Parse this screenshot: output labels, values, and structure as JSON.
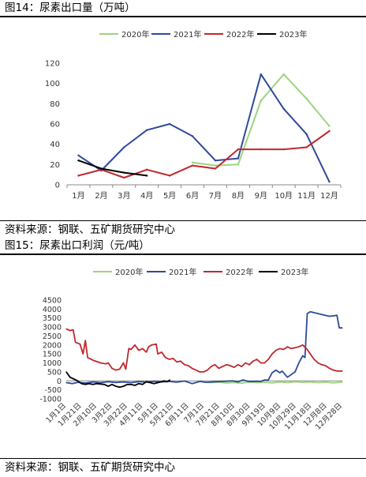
{
  "figures": [
    {
      "title": "图14：尿素出口量（万吨）",
      "source": "资料来源：钢联、五矿期货研究中心"
    },
    {
      "title": "图15：尿素出口利润（元/吨）",
      "source": "资料来源：钢联、五矿期货研究中心"
    }
  ],
  "chart_data": [
    {
      "type": "line",
      "title": "",
      "xlabel": "",
      "ylabel": "",
      "categories": [
        "1月",
        "2月",
        "3月",
        "4月",
        "5月",
        "6月",
        "7月",
        "8月",
        "9月",
        "10月",
        "11月",
        "12月"
      ],
      "ylim": [
        0,
        120
      ],
      "yticks": [
        0,
        20,
        40,
        60,
        80,
        100,
        120
      ],
      "grid": false,
      "legend": "top",
      "series": [
        {
          "name": "2020年",
          "color": "#9ed37e",
          "values": [
            null,
            null,
            null,
            null,
            null,
            22,
            19,
            20,
            83,
            109,
            85,
            58
          ]
        },
        {
          "name": "2021年",
          "color": "#2e4a9a",
          "values": [
            29,
            14,
            37,
            54,
            60,
            48,
            24,
            26,
            109,
            75,
            50,
            3
          ]
        },
        {
          "name": "2022年",
          "color": "#c0282d",
          "values": [
            9,
            15,
            7,
            15,
            9,
            19,
            16,
            35,
            35,
            35,
            37,
            53
          ]
        },
        {
          "name": "2023年",
          "color": "#000000",
          "values": [
            24,
            16,
            12,
            9,
            null,
            null,
            null,
            null,
            null,
            null,
            null,
            null
          ]
        }
      ]
    },
    {
      "type": "line",
      "title": "",
      "xlabel": "",
      "ylabel": "",
      "x_tick_labels": [
        "1月1日",
        "1月21日",
        "2月10日",
        "3月2日",
        "3月22日",
        "4月11日",
        "5月1日",
        "5月21日",
        "6月11日",
        "7月1日",
        "7月21日",
        "8月10日",
        "8月30日",
        "9月19日",
        "10月9日",
        "10月29日",
        "11月18日",
        "12月8日",
        "12月28日"
      ],
      "x_domain_days": [
        0,
        362
      ],
      "ylim": [
        -1000,
        4500
      ],
      "yticks": [
        -1000,
        -500,
        0,
        500,
        1000,
        1500,
        2000,
        2500,
        3000,
        3500,
        4000,
        4500
      ],
      "grid": false,
      "legend": "top",
      "series": [
        {
          "name": "2020年",
          "color": "#9ed37e",
          "points": [
            [
              183,
              -80
            ],
            [
              190,
              -100
            ],
            [
              200,
              -70
            ],
            [
              210,
              -120
            ],
            [
              220,
              -90
            ],
            [
              230,
              -130
            ],
            [
              240,
              -60
            ],
            [
              250,
              -100
            ],
            [
              260,
              -80
            ],
            [
              270,
              -110
            ],
            [
              280,
              -60
            ],
            [
              290,
              -90
            ],
            [
              300,
              -50
            ],
            [
              310,
              -80
            ],
            [
              320,
              -60
            ],
            [
              330,
              -100
            ],
            [
              340,
              -70
            ],
            [
              350,
              -110
            ],
            [
              362,
              -60
            ]
          ]
        },
        {
          "name": "2021年",
          "color": "#2e4a9a",
          "points": [
            [
              0,
              -100
            ],
            [
              8,
              -150
            ],
            [
              15,
              -80
            ],
            [
              25,
              -120
            ],
            [
              35,
              -60
            ],
            [
              45,
              -100
            ],
            [
              55,
              -50
            ],
            [
              65,
              -90
            ],
            [
              75,
              -60
            ],
            [
              85,
              -100
            ],
            [
              95,
              -40
            ],
            [
              105,
              -70
            ],
            [
              115,
              -20
            ],
            [
              125,
              -60
            ],
            [
              135,
              -30
            ],
            [
              145,
              -70
            ],
            [
              155,
              -10
            ],
            [
              165,
              -150
            ],
            [
              175,
              -30
            ],
            [
              183,
              -80
            ],
            [
              190,
              -60
            ],
            [
              200,
              -40
            ],
            [
              210,
              -20
            ],
            [
              218,
              0
            ],
            [
              225,
              -60
            ],
            [
              232,
              50
            ],
            [
              240,
              -40
            ],
            [
              250,
              -20
            ],
            [
              255,
              -30
            ],
            [
              260,
              50
            ],
            [
              265,
              50
            ],
            [
              270,
              450
            ],
            [
              275,
              600
            ],
            [
              280,
              450
            ],
            [
              283,
              550
            ],
            [
              290,
              200
            ],
            [
              300,
              500
            ],
            [
              305,
              1000
            ],
            [
              310,
              1400
            ],
            [
              313,
              1300
            ],
            [
              316,
              3750
            ],
            [
              320,
              3850
            ],
            [
              325,
              3800
            ],
            [
              335,
              3700
            ],
            [
              345,
              3600
            ],
            [
              355,
              3650
            ],
            [
              358,
              2950
            ],
            [
              362,
              2950
            ]
          ]
        },
        {
          "name": "2022年",
          "color": "#c0282d",
          "points": [
            [
              0,
              2900
            ],
            [
              5,
              2800
            ],
            [
              9,
              2850
            ],
            [
              12,
              2150
            ],
            [
              18,
              2050
            ],
            [
              22,
              1500
            ],
            [
              25,
              2250
            ],
            [
              28,
              1300
            ],
            [
              35,
              1150
            ],
            [
              45,
              1000
            ],
            [
              52,
              950
            ],
            [
              55,
              1000
            ],
            [
              60,
              700
            ],
            [
              65,
              600
            ],
            [
              70,
              650
            ],
            [
              75,
              1000
            ],
            [
              78,
              650
            ],
            [
              80,
              1200
            ],
            [
              82,
              1800
            ],
            [
              85,
              1750
            ],
            [
              90,
              2000
            ],
            [
              95,
              1700
            ],
            [
              100,
              1800
            ],
            [
              105,
              1600
            ],
            [
              108,
              1900
            ],
            [
              112,
              2000
            ],
            [
              118,
              2050
            ],
            [
              120,
              1500
            ],
            [
              125,
              1600
            ],
            [
              130,
              1300
            ],
            [
              135,
              1200
            ],
            [
              140,
              1250
            ],
            [
              145,
              1050
            ],
            [
              150,
              1100
            ],
            [
              155,
              900
            ],
            [
              160,
              850
            ],
            [
              165,
              700
            ],
            [
              170,
              600
            ],
            [
              175,
              500
            ],
            [
              180,
              500
            ],
            [
              185,
              600
            ],
            [
              190,
              800
            ],
            [
              195,
              900
            ],
            [
              200,
              700
            ],
            [
              205,
              800
            ],
            [
              210,
              900
            ],
            [
              215,
              850
            ],
            [
              220,
              750
            ],
            [
              225,
              900
            ],
            [
              230,
              800
            ],
            [
              235,
              1000
            ],
            [
              240,
              900
            ],
            [
              245,
              1100
            ],
            [
              250,
              1200
            ],
            [
              255,
              1000
            ],
            [
              260,
              1000
            ],
            [
              265,
              1200
            ],
            [
              270,
              1500
            ],
            [
              275,
              1700
            ],
            [
              280,
              1800
            ],
            [
              285,
              1750
            ],
            [
              290,
              1900
            ],
            [
              295,
              1800
            ],
            [
              300,
              1850
            ],
            [
              305,
              1900
            ],
            [
              310,
              2000
            ],
            [
              315,
              1800
            ],
            [
              320,
              1500
            ],
            [
              325,
              1200
            ],
            [
              330,
              1000
            ],
            [
              335,
              900
            ],
            [
              340,
              850
            ],
            [
              345,
              700
            ],
            [
              350,
              600
            ],
            [
              355,
              550
            ],
            [
              362,
              550
            ]
          ]
        },
        {
          "name": "2023年",
          "color": "#000000",
          "points": [
            [
              0,
              500
            ],
            [
              5,
              200
            ],
            [
              10,
              100
            ],
            [
              15,
              0
            ],
            [
              20,
              -150
            ],
            [
              25,
              -200
            ],
            [
              30,
              -150
            ],
            [
              35,
              -200
            ],
            [
              40,
              -150
            ],
            [
              50,
              -200
            ],
            [
              55,
              -300
            ],
            [
              60,
              -200
            ],
            [
              65,
              -300
            ],
            [
              70,
              -350
            ],
            [
              75,
              -300
            ],
            [
              80,
              -200
            ],
            [
              85,
              -200
            ],
            [
              90,
              -250
            ],
            [
              95,
              -150
            ],
            [
              100,
              -200
            ],
            [
              105,
              -50
            ],
            [
              110,
              -100
            ],
            [
              115,
              -150
            ],
            [
              120,
              -100
            ],
            [
              125,
              -50
            ],
            [
              128,
              0
            ],
            [
              132,
              -50
            ],
            [
              136,
              50
            ]
          ]
        }
      ]
    }
  ]
}
